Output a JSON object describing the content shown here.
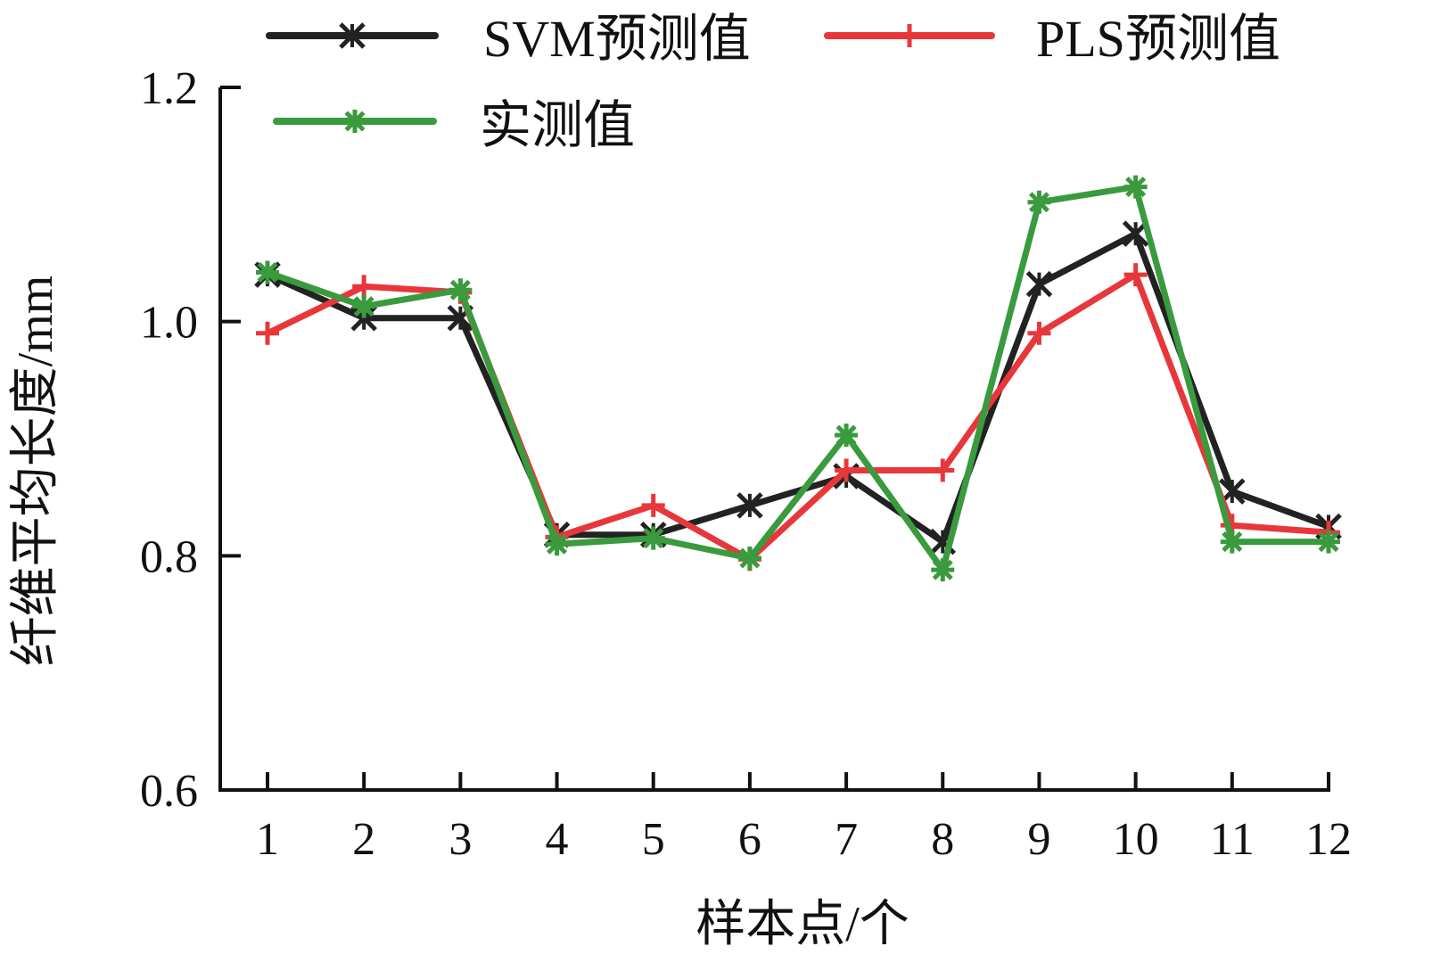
{
  "chart_data": {
    "type": "line",
    "x": [
      1,
      2,
      3,
      4,
      5,
      6,
      7,
      8,
      9,
      10,
      11,
      12
    ],
    "xlabel": "样本点/个",
    "ylabel": "纤维平均长度/mm",
    "ylim": [
      0.6,
      1.2
    ],
    "yticks": [
      "0.6",
      "0.8",
      "1.0",
      "1.2"
    ],
    "xticks": [
      "1",
      "2",
      "3",
      "4",
      "5",
      "6",
      "7",
      "8",
      "9",
      "10",
      "11",
      "12"
    ],
    "grid": false,
    "legend_position": "top",
    "series": [
      {
        "name": "SVM预测值",
        "color": "#222222",
        "marker": "x-star",
        "values": [
          1.04,
          1.003,
          1.003,
          0.818,
          0.818,
          0.843,
          0.868,
          0.812,
          1.032,
          1.075,
          0.855,
          0.825
        ]
      },
      {
        "name": "PLS预测值",
        "color": "#e8373b",
        "marker": "plus",
        "values": [
          0.99,
          1.03,
          1.025,
          0.816,
          0.843,
          0.797,
          0.873,
          0.873,
          0.99,
          1.04,
          0.826,
          0.82
        ]
      },
      {
        "name": "实测值",
        "color": "#3a9a3e",
        "marker": "asterisk",
        "values": [
          1.042,
          1.013,
          1.027,
          0.81,
          0.815,
          0.798,
          0.903,
          0.788,
          1.102,
          1.115,
          0.812,
          0.812
        ]
      }
    ]
  }
}
